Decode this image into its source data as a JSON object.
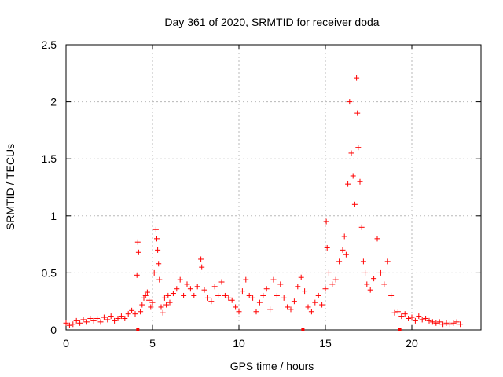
{
  "chart_data": {
    "type": "scatter",
    "title": "Day 361 of 2020, SRMTID for receiver doda",
    "xlabel": "GPS time / hours",
    "ylabel": "SRMTID / TECUs",
    "xlim": [
      0,
      24
    ],
    "ylim": [
      0,
      2.5
    ],
    "xticks": [
      0,
      5,
      10,
      15,
      20
    ],
    "xtick_labels": [
      "0",
      "5",
      "10",
      "15",
      "20"
    ],
    "yticks": [
      0,
      0.5,
      1,
      1.5,
      2,
      2.5
    ],
    "ytick_labels": [
      "0",
      "0.5",
      "1",
      "1.5",
      "2",
      "2.5"
    ],
    "grid": true,
    "marker": "+",
    "series": [
      {
        "name": "SRMTID",
        "color": "#ff0000",
        "x": [
          0.0,
          0.2,
          0.4,
          0.6,
          0.8,
          1.0,
          1.2,
          1.4,
          1.6,
          1.8,
          2.0,
          2.2,
          2.4,
          2.6,
          2.8,
          3.0,
          3.2,
          3.4,
          3.6,
          3.8,
          4.0,
          4.1,
          4.15,
          4.2,
          4.3,
          4.4,
          4.5,
          4.6,
          4.7,
          4.8,
          4.9,
          5.0,
          5.1,
          5.2,
          5.25,
          5.3,
          5.35,
          5.4,
          5.5,
          5.6,
          5.7,
          5.8,
          5.9,
          6.0,
          6.2,
          6.4,
          6.6,
          6.8,
          7.0,
          7.2,
          7.4,
          7.6,
          7.8,
          7.85,
          8.0,
          8.2,
          8.4,
          8.6,
          8.8,
          9.0,
          9.2,
          9.4,
          9.6,
          9.8,
          10.0,
          10.2,
          10.4,
          10.6,
          10.8,
          11.0,
          11.2,
          11.4,
          11.6,
          11.8,
          12.0,
          12.2,
          12.4,
          12.6,
          12.8,
          13.0,
          13.2,
          13.4,
          13.6,
          13.8,
          14.0,
          14.2,
          14.4,
          14.6,
          14.8,
          15.0,
          15.05,
          15.1,
          15.2,
          15.4,
          15.6,
          15.8,
          16.0,
          16.1,
          16.2,
          16.3,
          16.4,
          16.5,
          16.6,
          16.7,
          16.8,
          16.85,
          16.9,
          17.0,
          17.1,
          17.2,
          17.3,
          17.4,
          17.6,
          17.8,
          18.0,
          18.2,
          18.4,
          18.6,
          18.8,
          19.0,
          19.2,
          19.4,
          19.6,
          19.8,
          20.0,
          20.2,
          20.4,
          20.6,
          20.8,
          21.0,
          21.2,
          21.4,
          21.6,
          21.8,
          22.0,
          22.2,
          22.4,
          22.6,
          22.8
        ],
        "y": [
          0.06,
          0.04,
          0.05,
          0.08,
          0.06,
          0.09,
          0.07,
          0.1,
          0.08,
          0.1,
          0.07,
          0.11,
          0.09,
          0.12,
          0.08,
          0.1,
          0.12,
          0.1,
          0.14,
          0.17,
          0.14,
          0.48,
          0.77,
          0.68,
          0.16,
          0.22,
          0.28,
          0.3,
          0.33,
          0.26,
          0.2,
          0.24,
          0.5,
          0.88,
          0.8,
          0.7,
          0.58,
          0.44,
          0.2,
          0.15,
          0.28,
          0.22,
          0.3,
          0.24,
          0.32,
          0.36,
          0.44,
          0.3,
          0.4,
          0.36,
          0.3,
          0.38,
          0.62,
          0.55,
          0.35,
          0.28,
          0.25,
          0.38,
          0.3,
          0.42,
          0.3,
          0.28,
          0.26,
          0.2,
          0.16,
          0.34,
          0.44,
          0.3,
          0.28,
          0.16,
          0.24,
          0.3,
          0.36,
          0.18,
          0.44,
          0.3,
          0.4,
          0.28,
          0.2,
          0.18,
          0.25,
          0.38,
          0.46,
          0.34,
          0.2,
          0.16,
          0.24,
          0.3,
          0.22,
          0.36,
          0.95,
          0.72,
          0.5,
          0.4,
          0.44,
          0.6,
          0.7,
          0.82,
          0.66,
          1.28,
          2.0,
          1.55,
          1.35,
          1.1,
          2.21,
          1.9,
          1.6,
          1.3,
          0.9,
          0.6,
          0.5,
          0.4,
          0.35,
          0.45,
          0.8,
          0.5,
          0.4,
          0.6,
          0.3,
          0.15,
          0.16,
          0.12,
          0.14,
          0.1,
          0.11,
          0.08,
          0.12,
          0.09,
          0.1,
          0.08,
          0.07,
          0.06,
          0.07,
          0.05,
          0.06,
          0.05,
          0.06,
          0.07,
          0.05
        ]
      }
    ],
    "zero_markers_x": [
      4.15,
      13.7,
      19.3
    ]
  }
}
